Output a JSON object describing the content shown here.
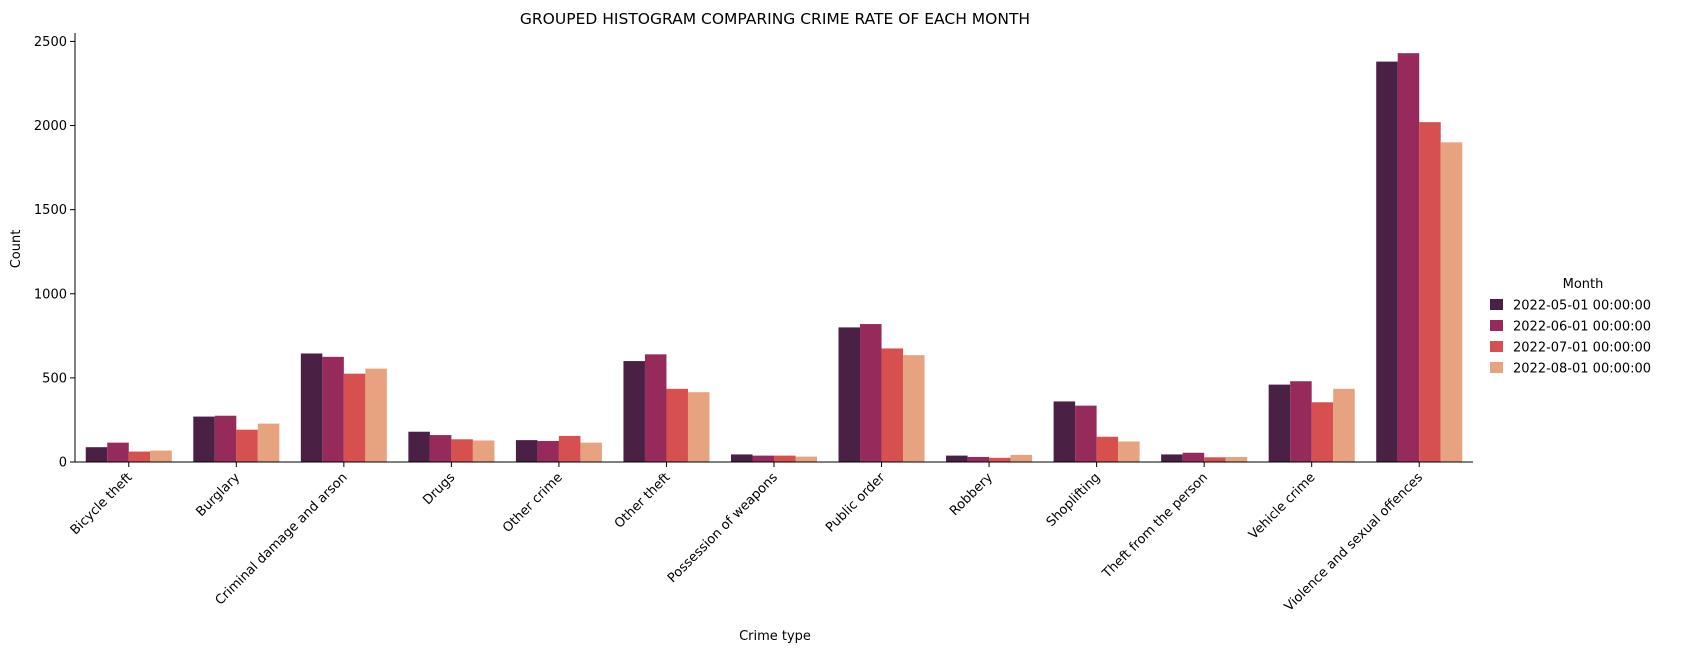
{
  "chart_data": {
    "type": "bar",
    "title": "GROUPED HISTOGRAM COMPARING CRIME RATE OF EACH MONTH",
    "xlabel": "Crime type",
    "ylabel": "Count",
    "ylim": [
      0,
      2550
    ],
    "yticks": [
      0,
      500,
      1000,
      1500,
      2000,
      2500
    ],
    "grid": false,
    "legend_position": "right",
    "legend_title": "Month",
    "categories": [
      "Bicycle theft",
      "Burglary",
      "Criminal damage and arson",
      "Drugs",
      "Other crime",
      "Other theft",
      "Possession of weapons",
      "Public order",
      "Robbery",
      "Shoplifting",
      "Theft from the person",
      "Vehicle crime",
      "Violence and sexual offences"
    ],
    "series": [
      {
        "name": "2022-05-01 00:00:00",
        "color": "#4a2045",
        "values": [
          88,
          270,
          645,
          180,
          130,
          600,
          45,
          800,
          38,
          360,
          45,
          460,
          2380
        ]
      },
      {
        "name": "2022-06-01 00:00:00",
        "color": "#952a5b",
        "values": [
          115,
          275,
          625,
          160,
          125,
          640,
          38,
          820,
          30,
          335,
          55,
          480,
          2430
        ]
      },
      {
        "name": "2022-07-01 00:00:00",
        "color": "#d65050",
        "values": [
          62,
          192,
          525,
          135,
          155,
          435,
          38,
          675,
          25,
          150,
          28,
          355,
          2020
        ]
      },
      {
        "name": "2022-08-01 00:00:00",
        "color": "#e7a37f",
        "values": [
          68,
          228,
          555,
          128,
          115,
          415,
          32,
          635,
          42,
          122,
          30,
          435,
          1900
        ]
      }
    ]
  }
}
